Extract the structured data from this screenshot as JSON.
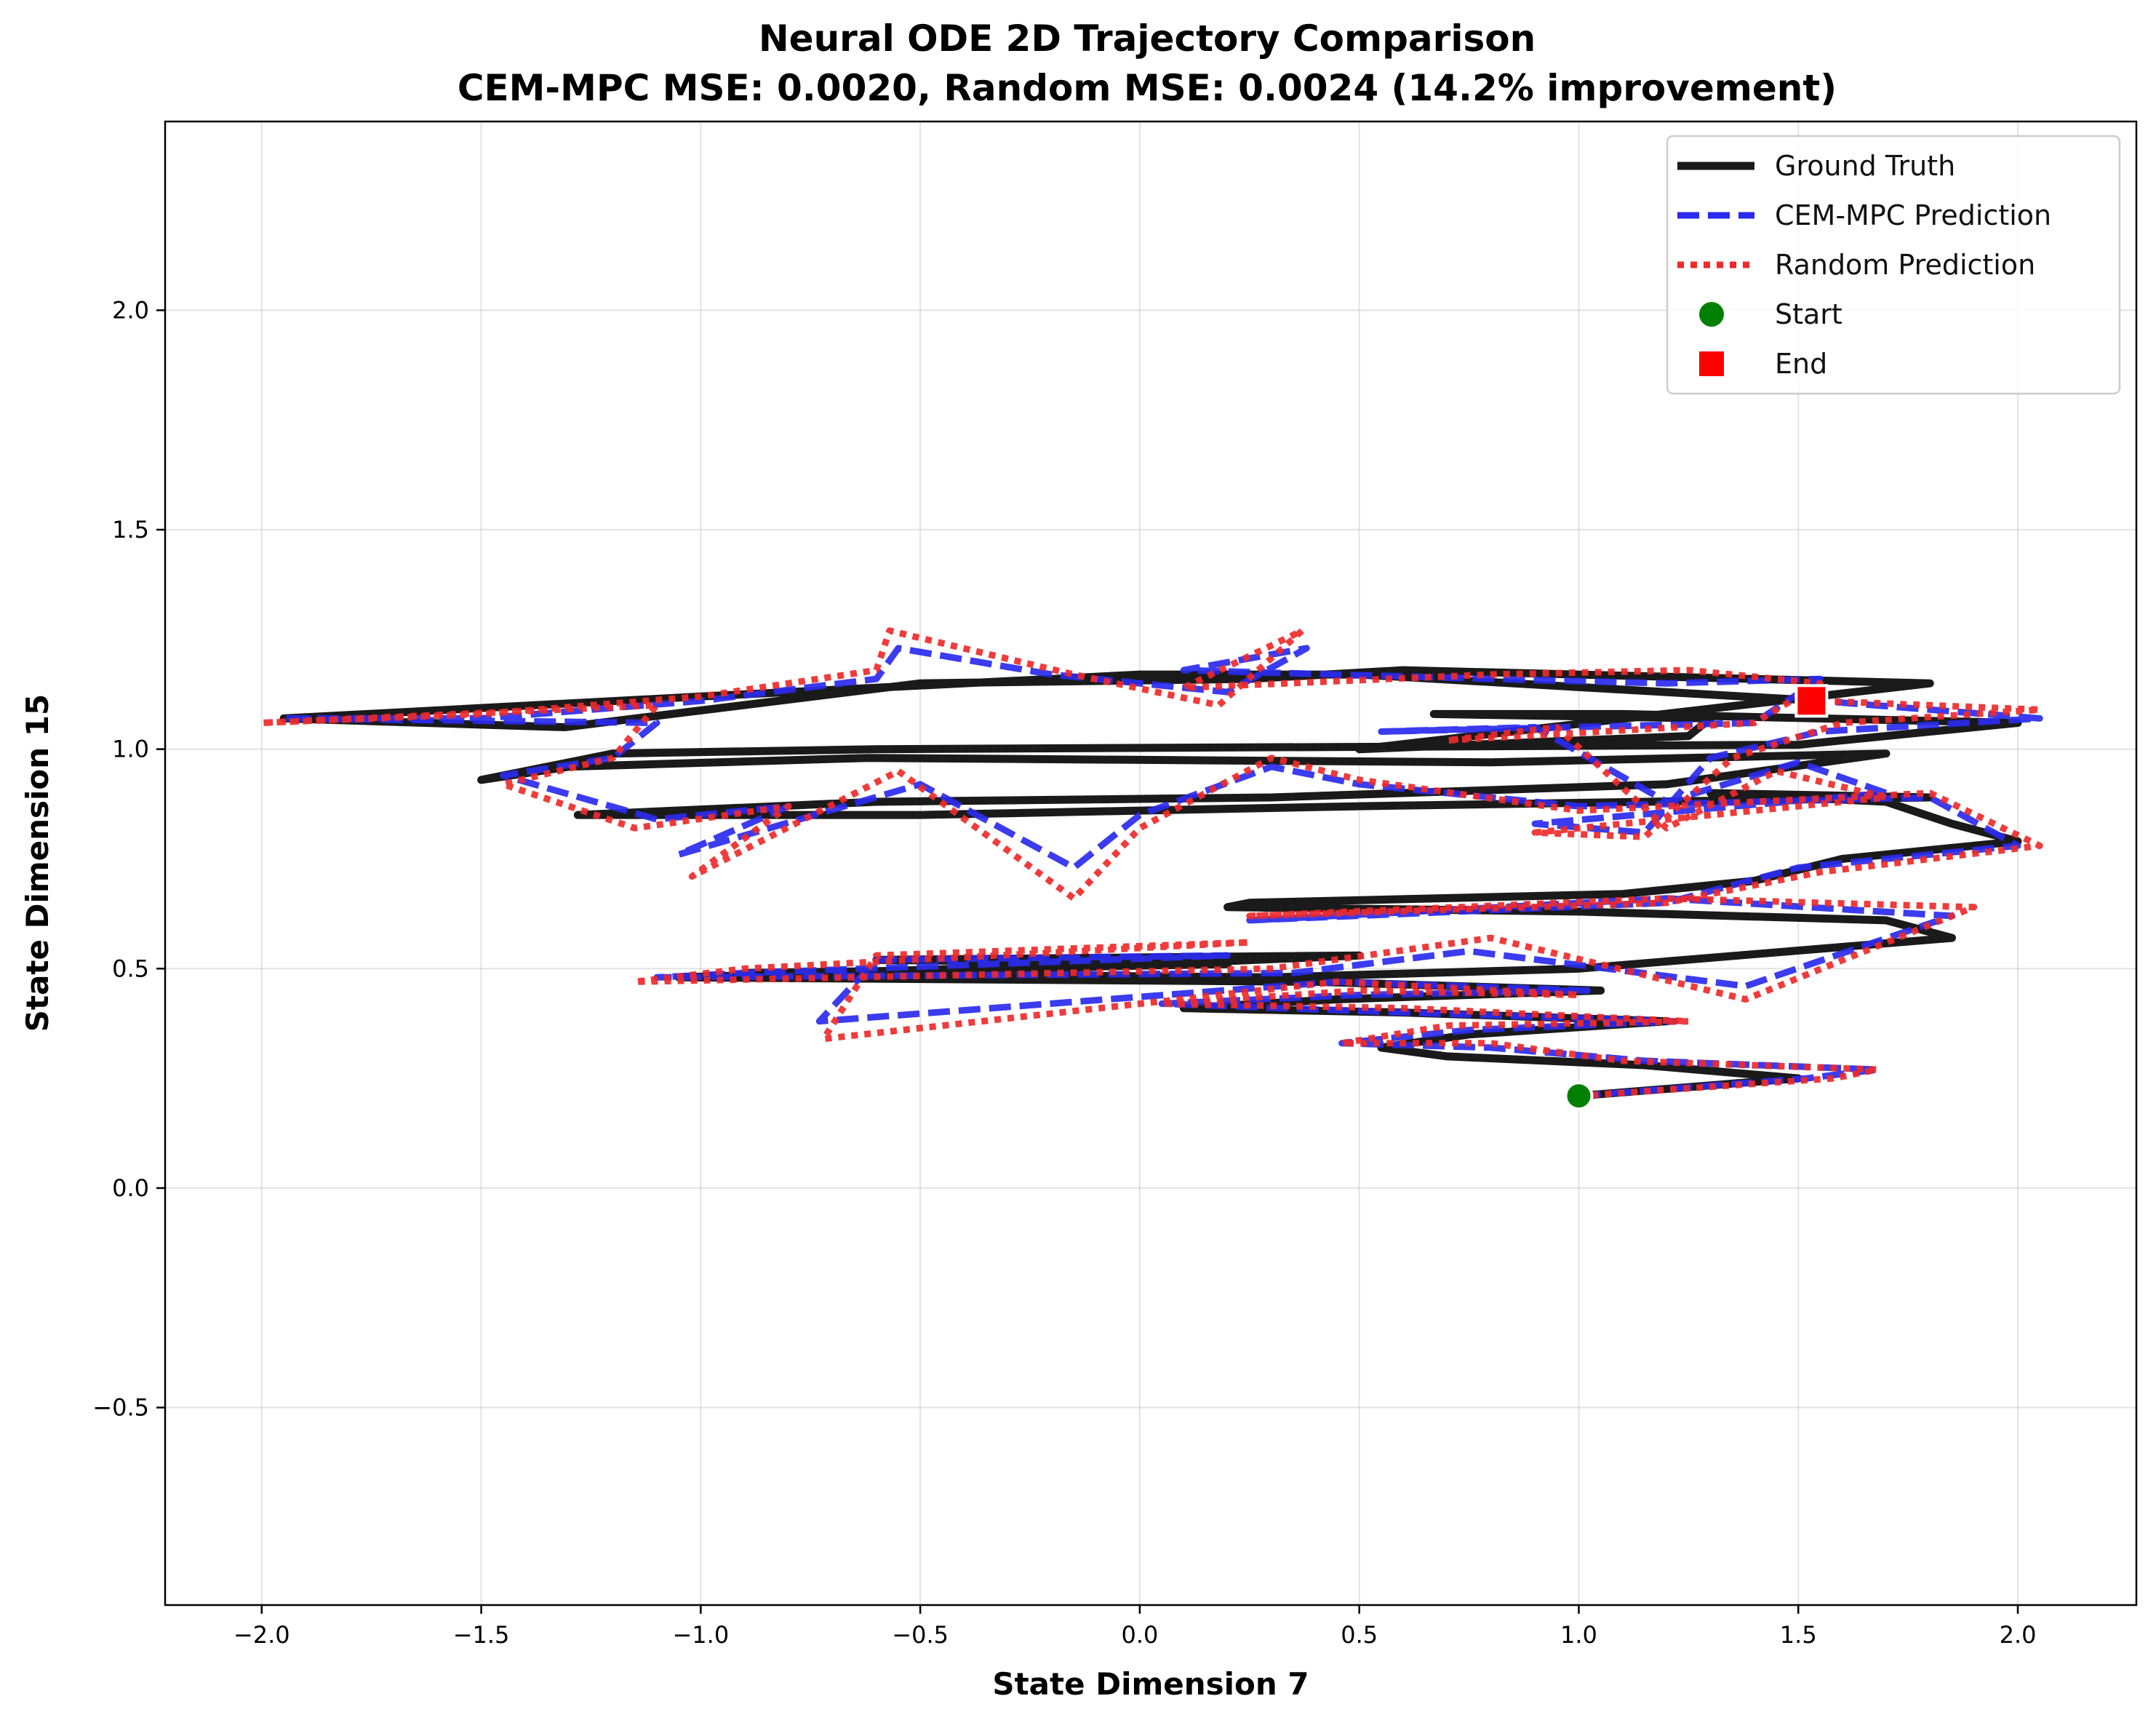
{
  "chart_data": {
    "type": "line",
    "title": "Neural ODE 2D Trajectory Comparison",
    "subtitle": "CEM-MPC MSE: 0.0020, Random MSE: 0.0024 (14.2% improvement)",
    "xlabel": "State Dimension 7",
    "ylabel": "State Dimension 15",
    "xlim": [
      -2.22,
      2.27
    ],
    "ylim": [
      -0.95,
      2.43
    ],
    "xticks": [
      -2.0,
      -1.5,
      -1.0,
      -0.5,
      0.0,
      0.5,
      1.0,
      1.5,
      2.0
    ],
    "yticks": [
      -0.5,
      0.0,
      0.5,
      1.0,
      1.5,
      2.0
    ],
    "xtick_labels": [
      "−2.0",
      "−1.5",
      "−1.0",
      "−0.5",
      "0.0",
      "0.5",
      "1.0",
      "1.5",
      "2.0"
    ],
    "ytick_labels": [
      "−0.5",
      "0.0",
      "0.5",
      "1.0",
      "1.5",
      "2.0"
    ],
    "grid": true,
    "legend_position": "top-right",
    "series": [
      {
        "name": "Ground Truth",
        "style": "solid",
        "color": "#1a1a1a",
        "points": [
          [
            1.0,
            0.21
          ],
          [
            1.5,
            0.25
          ],
          [
            1.15,
            0.28
          ],
          [
            0.7,
            0.3
          ],
          [
            0.55,
            0.32
          ],
          [
            0.75,
            0.35
          ],
          [
            1.2,
            0.38
          ],
          [
            0.6,
            0.4
          ],
          [
            0.1,
            0.41
          ],
          [
            0.45,
            0.43
          ],
          [
            1.05,
            0.45
          ],
          [
            0.4,
            0.47
          ],
          [
            -1.05,
            0.48
          ],
          [
            -0.4,
            0.5
          ],
          [
            0.2,
            0.51
          ],
          [
            -0.6,
            0.52
          ],
          [
            0.5,
            0.53
          ],
          [
            -0.2,
            0.5
          ],
          [
            -0.9,
            0.49
          ],
          [
            0.3,
            0.48
          ],
          [
            1.0,
            0.5
          ],
          [
            1.85,
            0.57
          ],
          [
            1.7,
            0.61
          ],
          [
            1.0,
            0.63
          ],
          [
            0.2,
            0.64
          ],
          [
            0.25,
            0.65
          ],
          [
            1.1,
            0.67
          ],
          [
            1.4,
            0.7
          ],
          [
            1.6,
            0.75
          ],
          [
            2.0,
            0.79
          ],
          [
            1.85,
            0.83
          ],
          [
            1.7,
            0.88
          ],
          [
            1.3,
            0.9
          ],
          [
            1.8,
            0.89
          ],
          [
            0.5,
            0.87
          ],
          [
            -0.5,
            0.85
          ],
          [
            -1.28,
            0.85
          ],
          [
            -0.6,
            0.88
          ],
          [
            0.3,
            0.89
          ],
          [
            1.2,
            0.92
          ],
          [
            1.7,
            0.99
          ],
          [
            0.8,
            0.97
          ],
          [
            -0.62,
            0.98
          ],
          [
            -1.3,
            0.96
          ],
          [
            -1.5,
            0.93
          ],
          [
            -1.2,
            0.99
          ],
          [
            -0.6,
            1.0
          ],
          [
            1.5,
            1.01
          ],
          [
            2.0,
            1.06
          ],
          [
            1.1,
            1.08
          ],
          [
            0.67,
            1.08
          ],
          [
            1.3,
            1.07
          ],
          [
            1.25,
            1.03
          ],
          [
            0.5,
            1.0
          ],
          [
            1.8,
            1.15
          ],
          [
            0.6,
            1.18
          ],
          [
            0.25,
            1.16
          ],
          [
            -0.5,
            1.15
          ],
          [
            -1.31,
            1.05
          ],
          [
            -1.95,
            1.07
          ],
          [
            -1.0,
            1.12
          ],
          [
            0.0,
            1.17
          ],
          [
            0.5,
            1.17
          ],
          [
            1.55,
            1.11
          ]
        ]
      },
      {
        "name": "CEM-MPC Prediction",
        "style": "dashed",
        "color": "#2a2aee",
        "points": [
          [
            1.0,
            0.21
          ],
          [
            1.52,
            0.25
          ],
          [
            1.68,
            0.27
          ],
          [
            1.15,
            0.29
          ],
          [
            0.8,
            0.32
          ],
          [
            0.46,
            0.33
          ],
          [
            0.75,
            0.36
          ],
          [
            1.22,
            0.38
          ],
          [
            0.6,
            0.4
          ],
          [
            0.05,
            0.42
          ],
          [
            0.5,
            0.44
          ],
          [
            1.02,
            0.45
          ],
          [
            0.45,
            0.47
          ],
          [
            -0.73,
            0.38
          ],
          [
            -0.6,
            0.52
          ],
          [
            0.2,
            0.53
          ],
          [
            -0.9,
            0.49
          ],
          [
            -1.1,
            0.48
          ],
          [
            0.35,
            0.49
          ],
          [
            0.75,
            0.54
          ],
          [
            1.38,
            0.46
          ],
          [
            1.85,
            0.62
          ],
          [
            1.2,
            0.66
          ],
          [
            0.25,
            0.61
          ],
          [
            1.2,
            0.65
          ],
          [
            1.5,
            0.73
          ],
          [
            2.0,
            0.78
          ],
          [
            1.8,
            0.89
          ],
          [
            1.0,
            0.87
          ],
          [
            0.5,
            0.92
          ],
          [
            0.3,
            0.96
          ],
          [
            0.0,
            0.85
          ],
          [
            -0.15,
            0.73
          ],
          [
            -0.5,
            0.92
          ],
          [
            -1.05,
            0.76
          ],
          [
            -0.8,
            0.87
          ],
          [
            -1.1,
            0.84
          ],
          [
            -1.45,
            0.94
          ],
          [
            -1.2,
            0.98
          ],
          [
            -1.1,
            1.06
          ],
          [
            -1.95,
            1.07
          ],
          [
            -1.5,
            1.07
          ],
          [
            -1.0,
            1.11
          ],
          [
            -0.6,
            1.16
          ],
          [
            -0.55,
            1.23
          ],
          [
            -0.2,
            1.17
          ],
          [
            0.2,
            1.13
          ],
          [
            0.38,
            1.23
          ],
          [
            0.1,
            1.18
          ],
          [
            0.8,
            1.16
          ],
          [
            1.2,
            1.15
          ],
          [
            1.55,
            1.16
          ],
          [
            1.4,
            1.06
          ],
          [
            0.55,
            1.04
          ],
          [
            0.9,
            1.05
          ],
          [
            1.2,
            0.88
          ],
          [
            1.5,
            0.97
          ],
          [
            1.7,
            0.9
          ],
          [
            0.9,
            0.83
          ],
          [
            1.15,
            0.81
          ],
          [
            1.3,
            0.98
          ],
          [
            1.55,
            1.04
          ],
          [
            2.05,
            1.07
          ],
          [
            1.55,
            1.11
          ]
        ]
      },
      {
        "name": "Random Prediction",
        "style": "dotted",
        "color": "#ee2a2a",
        "points": [
          [
            1.0,
            0.21
          ],
          [
            1.58,
            0.25
          ],
          [
            1.68,
            0.27
          ],
          [
            1.1,
            0.29
          ],
          [
            0.8,
            0.33
          ],
          [
            0.46,
            0.33
          ],
          [
            0.7,
            0.37
          ],
          [
            1.25,
            0.38
          ],
          [
            0.6,
            0.41
          ],
          [
            0.05,
            0.42
          ],
          [
            0.5,
            0.45
          ],
          [
            1.0,
            0.44
          ],
          [
            0.45,
            0.47
          ],
          [
            -0.72,
            0.34
          ],
          [
            -0.6,
            0.53
          ],
          [
            0.25,
            0.56
          ],
          [
            -0.9,
            0.5
          ],
          [
            -1.15,
            0.47
          ],
          [
            0.3,
            0.5
          ],
          [
            0.8,
            0.57
          ],
          [
            1.38,
            0.43
          ],
          [
            1.9,
            0.64
          ],
          [
            1.2,
            0.66
          ],
          [
            0.25,
            0.62
          ],
          [
            1.2,
            0.65
          ],
          [
            1.55,
            0.72
          ],
          [
            2.05,
            0.78
          ],
          [
            1.8,
            0.9
          ],
          [
            1.0,
            0.86
          ],
          [
            0.5,
            0.93
          ],
          [
            0.3,
            0.98
          ],
          [
            0.0,
            0.82
          ],
          [
            -0.15,
            0.66
          ],
          [
            -0.55,
            0.95
          ],
          [
            -1.02,
            0.71
          ],
          [
            -0.8,
            0.87
          ],
          [
            -1.15,
            0.82
          ],
          [
            -1.45,
            0.92
          ],
          [
            -1.2,
            0.98
          ],
          [
            -1.1,
            1.1
          ],
          [
            -2.0,
            1.06
          ],
          [
            -1.5,
            1.08
          ],
          [
            -1.0,
            1.12
          ],
          [
            -0.6,
            1.18
          ],
          [
            -0.57,
            1.27
          ],
          [
            -0.15,
            1.17
          ],
          [
            0.18,
            1.1
          ],
          [
            0.37,
            1.27
          ],
          [
            0.1,
            1.14
          ],
          [
            0.8,
            1.17
          ],
          [
            1.25,
            1.18
          ],
          [
            1.55,
            1.15
          ],
          [
            1.4,
            1.06
          ],
          [
            0.7,
            1.02
          ],
          [
            0.95,
            1.05
          ],
          [
            1.2,
            0.82
          ],
          [
            1.45,
            0.95
          ],
          [
            1.7,
            0.89
          ],
          [
            0.9,
            0.81
          ],
          [
            1.15,
            0.8
          ],
          [
            1.35,
            0.98
          ],
          [
            1.6,
            1.06
          ],
          [
            2.05,
            1.09
          ],
          [
            1.55,
            1.11
          ]
        ]
      }
    ],
    "markers": [
      {
        "name": "Start",
        "shape": "circle",
        "color": "#008000",
        "x": 1.0,
        "y": 0.21
      },
      {
        "name": "End",
        "shape": "square",
        "color": "#ff0000",
        "x": 1.53,
        "y": 1.11
      }
    ]
  }
}
